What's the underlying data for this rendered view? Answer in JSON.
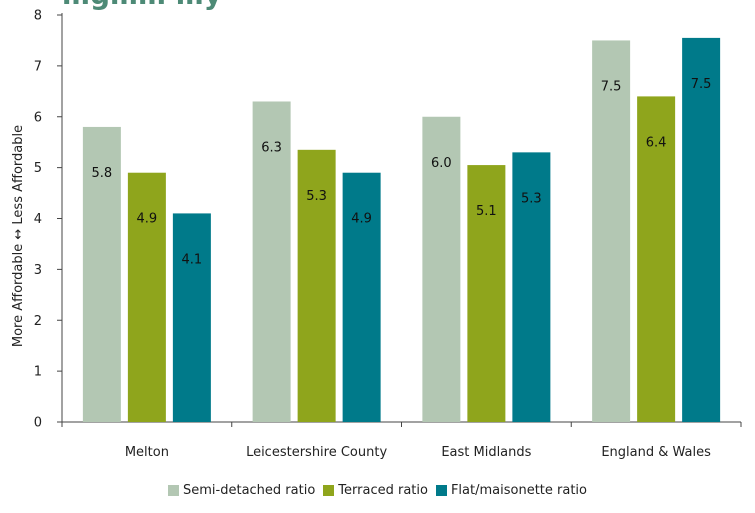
{
  "chart_data": {
    "type": "bar",
    "title": "…g…… …y",
    "xlabel": "",
    "ylabel": "More Affordable ↔ Less Affordable",
    "ylim": [
      0,
      8
    ],
    "yticks": [
      "0",
      "1",
      "2",
      "3",
      "4",
      "5",
      "6",
      "7",
      "8"
    ],
    "categories": [
      "Melton",
      "Leicestershire County",
      "East Midlands",
      "England & Wales"
    ],
    "series": [
      {
        "name": "Semi-detached ratio",
        "color": "#b3c7b3",
        "values": [
          5.8,
          6.3,
          6.0,
          7.5
        ],
        "labels": [
          "5.8",
          "6.3",
          "6.0",
          "7.5"
        ]
      },
      {
        "name": "Terraced ratio",
        "color": "#8fa51c",
        "values": [
          4.9,
          5.35,
          5.05,
          6.4
        ],
        "labels": [
          "4.9",
          "5.3",
          "5.1",
          "6.4"
        ]
      },
      {
        "name": "Flat/maisonette ratio",
        "color": "#007a8a",
        "values": [
          4.1,
          4.9,
          5.3,
          7.55
        ],
        "labels": [
          "4.1",
          "4.9",
          "5.3",
          "7.5"
        ]
      }
    ],
    "legend_position": "bottom",
    "grid": false
  }
}
